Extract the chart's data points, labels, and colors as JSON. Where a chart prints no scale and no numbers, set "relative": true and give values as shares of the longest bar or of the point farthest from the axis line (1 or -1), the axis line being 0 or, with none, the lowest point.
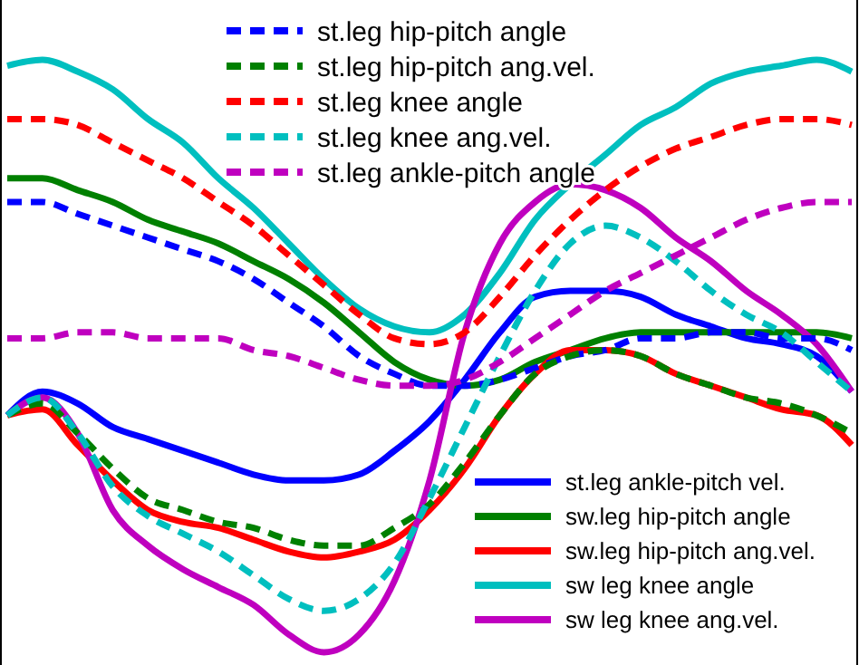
{
  "chart_data": {
    "type": "line",
    "relative": true,
    "legend": "top",
    "categories": [
      null,
      null,
      null,
      null,
      null,
      null,
      null,
      null,
      null,
      null,
      null,
      null,
      null,
      null,
      null,
      null,
      null,
      null,
      null,
      null,
      null,
      null,
      null,
      null,
      null
    ],
    "series": [
      {
        "name": "st.leg hip-pitch angle",
        "color": "#0000ff",
        "line_style": "dashed",
        "values": [
          0.76,
          0.76,
          0.74,
          0.72,
          0.7,
          0.68,
          0.66,
          0.63,
          0.59,
          0.55,
          0.5,
          0.47,
          0.45,
          0.45,
          0.46,
          0.48,
          0.5,
          0.51,
          0.53,
          0.53,
          0.54,
          0.54,
          0.53,
          0.53,
          0.51
        ]
      },
      {
        "name": "st.leg hip-pitch ang.vel.",
        "color": "#008000",
        "line_style": "dashed",
        "values": [
          0.4,
          0.42,
          0.37,
          0.31,
          0.26,
          0.24,
          0.22,
          0.21,
          0.19,
          0.18,
          0.18,
          0.21,
          0.25,
          0.32,
          0.4,
          0.47,
          0.5,
          0.51,
          0.5,
          0.47,
          0.45,
          0.43,
          0.42,
          0.4,
          0.37
        ]
      },
      {
        "name": "st.leg knee angle",
        "color": "#ff0000",
        "line_style": "dashed",
        "values": [
          0.9,
          0.9,
          0.89,
          0.86,
          0.83,
          0.8,
          0.76,
          0.72,
          0.67,
          0.62,
          0.57,
          0.53,
          0.52,
          0.54,
          0.6,
          0.67,
          0.73,
          0.78,
          0.82,
          0.85,
          0.87,
          0.89,
          0.9,
          0.9,
          0.89
        ]
      },
      {
        "name": "st.leg knee ang.vel.",
        "color": "#00bfbf",
        "line_style": "dashed",
        "values": [
          0.4,
          0.43,
          0.37,
          0.28,
          0.23,
          0.2,
          0.17,
          0.13,
          0.09,
          0.07,
          0.09,
          0.15,
          0.26,
          0.38,
          0.5,
          0.61,
          0.69,
          0.72,
          0.7,
          0.66,
          0.61,
          0.57,
          0.54,
          0.49,
          0.44
        ]
      },
      {
        "name": "st.leg ankle-pitch angle",
        "color": "#bf00bf",
        "line_style": "dashed",
        "values": [
          0.53,
          0.53,
          0.54,
          0.54,
          0.53,
          0.53,
          0.53,
          0.51,
          0.5,
          0.48,
          0.46,
          0.45,
          0.45,
          0.46,
          0.49,
          0.53,
          0.57,
          0.61,
          0.64,
          0.67,
          0.7,
          0.73,
          0.75,
          0.76,
          0.76
        ]
      },
      {
        "name": "st.leg ankle-pitch vel.",
        "color": "#0000ff",
        "line_style": "solid",
        "values": [
          0.4,
          0.44,
          0.42,
          0.38,
          0.36,
          0.34,
          0.32,
          0.3,
          0.29,
          0.29,
          0.3,
          0.34,
          0.39,
          0.46,
          0.54,
          0.6,
          0.61,
          0.61,
          0.6,
          0.57,
          0.55,
          0.53,
          0.52,
          0.5,
          0.44
        ]
      },
      {
        "name": "sw.leg hip-pitch angle",
        "color": "#008000",
        "line_style": "solid",
        "values": [
          0.8,
          0.8,
          0.78,
          0.76,
          0.73,
          0.71,
          0.69,
          0.66,
          0.63,
          0.59,
          0.54,
          0.49,
          0.46,
          0.45,
          0.46,
          0.49,
          0.51,
          0.53,
          0.54,
          0.54,
          0.54,
          0.54,
          0.54,
          0.54,
          0.53
        ]
      },
      {
        "name": "sw.leg hip-pitch ang.vel.",
        "color": "#ff0000",
        "line_style": "solid",
        "values": [
          0.4,
          0.41,
          0.35,
          0.29,
          0.24,
          0.22,
          0.21,
          0.19,
          0.17,
          0.16,
          0.17,
          0.19,
          0.24,
          0.31,
          0.4,
          0.47,
          0.51,
          0.51,
          0.5,
          0.47,
          0.45,
          0.43,
          0.41,
          0.4,
          0.35
        ]
      },
      {
        "name": "sw leg knee angle",
        "color": "#00bfbf",
        "line_style": "solid",
        "values": [
          0.99,
          1.0,
          0.98,
          0.95,
          0.9,
          0.86,
          0.8,
          0.75,
          0.69,
          0.63,
          0.58,
          0.55,
          0.54,
          0.57,
          0.64,
          0.73,
          0.79,
          0.84,
          0.89,
          0.92,
          0.96,
          0.98,
          0.99,
          1.0,
          0.98
        ]
      },
      {
        "name": "sw leg knee ang.vel.",
        "color": "#bf00bf",
        "line_style": "solid",
        "values": [
          0.4,
          0.43,
          0.37,
          0.24,
          0.18,
          0.14,
          0.11,
          0.08,
          0.03,
          0.0,
          0.03,
          0.12,
          0.29,
          0.54,
          0.69,
          0.76,
          0.79,
          0.78,
          0.75,
          0.7,
          0.66,
          0.61,
          0.57,
          0.52,
          0.44
        ]
      }
    ]
  }
}
